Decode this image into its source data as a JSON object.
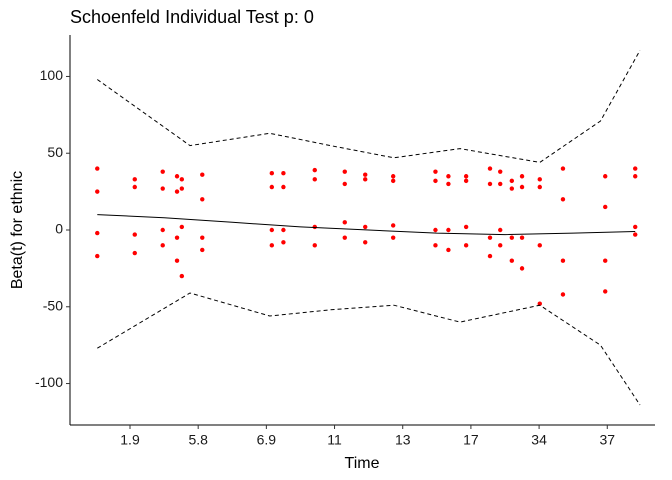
{
  "chart_data": {
    "type": "scatter",
    "title": "Schoenfeld Individual Test p: 0",
    "x_label": "Time",
    "y_label": "Beta(t) for ethnic",
    "xlim": [
      0.12,
      8.7
    ],
    "ylim": [
      -127,
      127
    ],
    "xticks": [
      {
        "value": 1,
        "label": "1.9"
      },
      {
        "value": 2,
        "label": "5.8"
      },
      {
        "value": 3,
        "label": "6.9"
      },
      {
        "value": 4,
        "label": "11"
      },
      {
        "value": 5,
        "label": "13"
      },
      {
        "value": 6,
        "label": "17"
      },
      {
        "value": 7,
        "label": "34"
      },
      {
        "value": 8,
        "label": "37"
      }
    ],
    "yticks": [
      -100,
      -50,
      0,
      50,
      100
    ],
    "grid": false,
    "series": [
      {
        "type": "scatter",
        "color": "#ff0000",
        "x": [
          0.52,
          0.52,
          0.52,
          0.52,
          1.07,
          1.07,
          1.07,
          1.07,
          1.48,
          1.48,
          1.48,
          1.48,
          1.69,
          1.69,
          1.69,
          1.69,
          1.76,
          1.76,
          1.76,
          1.76,
          2.06,
          2.06,
          2.06,
          2.06,
          3.08,
          3.08,
          3.08,
          3.08,
          3.25,
          3.25,
          3.25,
          3.25,
          3.71,
          3.71,
          3.71,
          3.71,
          4.15,
          4.15,
          4.15,
          4.15,
          4.45,
          4.45,
          4.45,
          4.45,
          4.86,
          4.86,
          4.86,
          4.86,
          5.48,
          5.48,
          5.48,
          5.48,
          5.67,
          5.67,
          5.67,
          5.67,
          5.93,
          5.93,
          5.93,
          5.93,
          6.28,
          6.28,
          6.28,
          6.28,
          6.43,
          6.43,
          6.43,
          6.43,
          6.6,
          6.6,
          6.6,
          6.6,
          6.75,
          6.75,
          6.75,
          6.75,
          7.01,
          7.01,
          7.01,
          7.01,
          7.35,
          7.35,
          7.35,
          7.35,
          7.97,
          7.97,
          7.97,
          7.97,
          8.41,
          8.41,
          8.41,
          8.41
        ],
        "values": [
          40,
          25,
          -2,
          -17,
          33,
          28,
          -3,
          -15,
          38,
          27,
          0,
          -10,
          35,
          25,
          -5,
          -20,
          33,
          27,
          2,
          -30,
          36,
          20,
          -5,
          -13,
          37,
          28,
          0,
          -10,
          37,
          28,
          0,
          -8,
          39,
          33,
          2,
          -10,
          38,
          30,
          5,
          -5,
          36,
          33,
          2,
          -8,
          35,
          32,
          3,
          -5,
          38,
          32,
          0,
          -10,
          35,
          30,
          0,
          -13,
          35,
          32,
          2,
          -10,
          40,
          30,
          -5,
          -17,
          38,
          30,
          0,
          -10,
          32,
          27,
          -5,
          -20,
          35,
          28,
          -5,
          -25,
          33,
          28,
          -10,
          -48,
          40,
          20,
          -20,
          -42,
          35,
          15,
          -20,
          -40,
          40,
          35,
          2,
          -3
        ]
      },
      {
        "type": "line",
        "color": "#000000",
        "dashed": false,
        "x": [
          0.52,
          1.5,
          2.5,
          3.5,
          4.5,
          5.5,
          6.5,
          7.5,
          8.41
        ],
        "values": [
          10,
          8,
          5,
          2,
          0,
          -2,
          -3,
          -2,
          -1
        ]
      },
      {
        "type": "line",
        "color": "#000000",
        "dashed": true,
        "x": [
          0.52,
          1.88,
          3.05,
          3.94,
          4.87,
          5.84,
          7.01,
          7.9,
          8.48
        ],
        "values": [
          98,
          55,
          63,
          55,
          47,
          53,
          44,
          71,
          117
        ]
      },
      {
        "type": "line",
        "color": "#000000",
        "dashed": true,
        "x": [
          0.52,
          1.88,
          3.05,
          3.94,
          4.87,
          5.84,
          7.01,
          7.9,
          8.48
        ],
        "values": [
          -77,
          -41,
          -56,
          -52,
          -49,
          -60,
          -49,
          -75,
          -114
        ]
      }
    ]
  }
}
